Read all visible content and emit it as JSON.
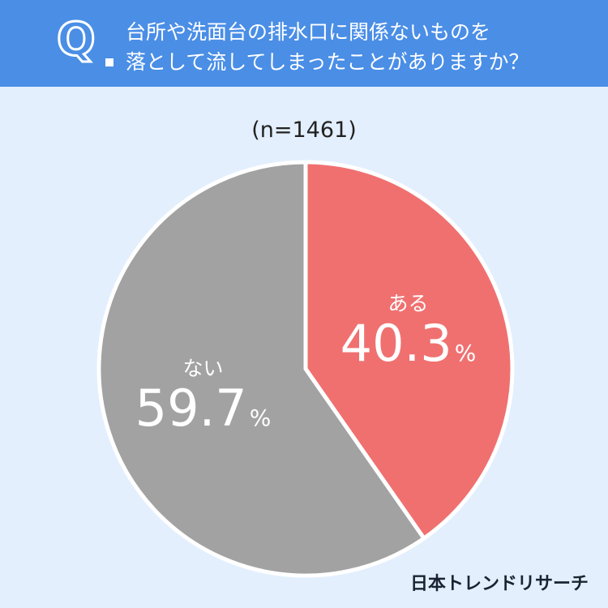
{
  "question": {
    "mark": "Q",
    "line1": "台所や洗面台の排水口に関係ないものを",
    "line2": "落として流してしまったことがありますか？"
  },
  "sample_label": "(n=1461)",
  "brand": "日本トレンドリサーチ",
  "colors": {
    "header": "#4a8ee6",
    "background": "#e3effd",
    "aru": "#f07070",
    "nai": "#a2a2a2"
  },
  "chart_data": {
    "type": "pie",
    "slices": [
      {
        "label": "ある",
        "value": 40.3,
        "display": "40.3",
        "unit": "%",
        "color": "#f07070"
      },
      {
        "label": "ない",
        "value": 59.7,
        "display": "59.7",
        "unit": "%",
        "color": "#a2a2a2"
      }
    ]
  }
}
